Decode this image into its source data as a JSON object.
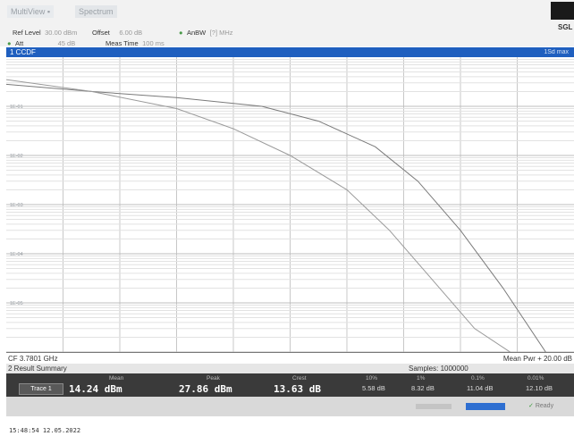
{
  "header": {
    "tab_multiview": "MultiView",
    "tab_multiview_mark": "▪",
    "tab_spectrum": "Spectrum",
    "logo": "",
    "sgl": "SGL"
  },
  "params": {
    "ref_level_label": "Ref Level",
    "ref_level_value": "30.00 dBm",
    "offset_label": "Offset",
    "offset_value": "6.00 dB",
    "anbw_label": "AnBW",
    "anbw_value": "[?] MHz",
    "att_label": "Att",
    "att_value": "45 dB",
    "meas_time_label": "Meas Time",
    "meas_time_value": "100 ms"
  },
  "window": {
    "title": "1 CCDF",
    "badge": "1Sd max"
  },
  "chart_data": {
    "type": "line",
    "title": "1 CCDF",
    "xlabel": "",
    "ylabel": "",
    "yscale": "log",
    "ylim": [
      1e-06,
      1
    ],
    "xlim": [
      0,
      20
    ],
    "y_tick_labels": [
      "1E-01",
      "1E-02",
      "1E-03",
      "1E-04",
      "1E-05"
    ],
    "grid": true,
    "series": [
      {
        "x": [
          0,
          3,
          6,
          9,
          11,
          13,
          14.5,
          16,
          17.5,
          19
        ],
        "y": [
          0.28,
          0.2,
          0.15,
          0.1,
          0.05,
          0.015,
          0.003,
          0.0003,
          2e-05,
          1e-06
        ],
        "color": "#7a7a7a"
      },
      {
        "x": [
          0,
          3,
          6,
          8,
          10,
          12,
          13.5,
          15,
          16.5,
          18
        ],
        "y": [
          0.35,
          0.2,
          0.09,
          0.035,
          0.01,
          0.002,
          0.0003,
          3e-05,
          3e-06,
          8e-07
        ],
        "color": "#9a9a9a"
      }
    ]
  },
  "footer": {
    "cf": "CF 3.7801 GHz",
    "mean_pwr": "Mean Pwr + 20.00 dB",
    "summary_title": "2 Result Summary",
    "samples": "Samples: 1000000",
    "trace_label": "Trace 1",
    "cols": [
      {
        "h": "Mean",
        "v": "14.24 dBm"
      },
      {
        "h": "Peak",
        "v": "27.86 dBm"
      },
      {
        "h": "Crest",
        "v": "13.63 dB"
      }
    ],
    "pct_cols": [
      {
        "h": "10%",
        "v": "5.58 dB"
      },
      {
        "h": "1%",
        "v": "8.32 dB"
      },
      {
        "h": "0.1%",
        "v": "11.04 dB"
      },
      {
        "h": "0.01%",
        "v": "12.10 dB"
      }
    ],
    "status_ready": "Ready",
    "timestamp": "15:48:54  12.05.2022"
  }
}
